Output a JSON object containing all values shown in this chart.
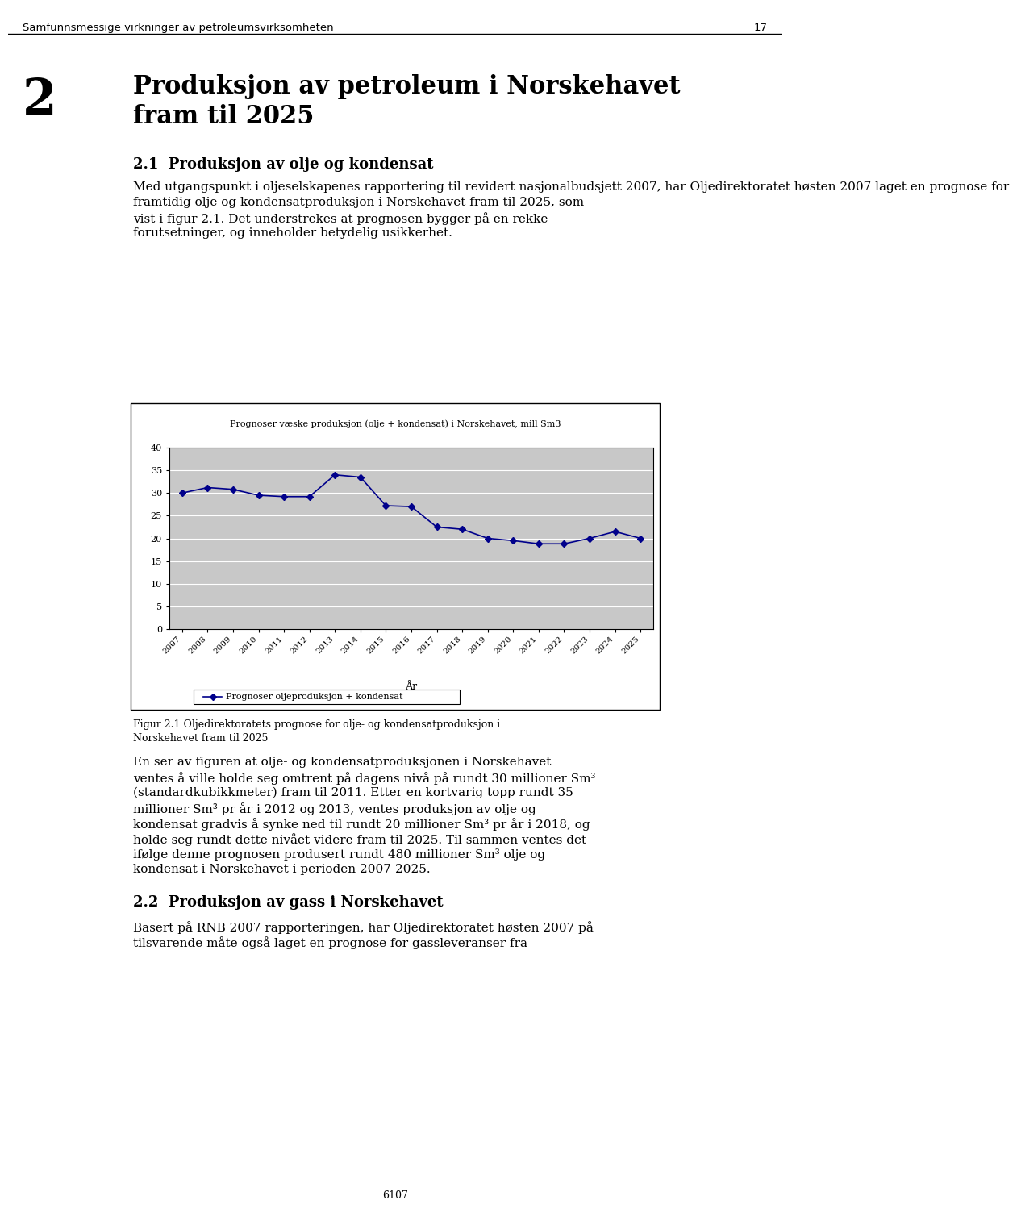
{
  "title": "Prognoser væske produksjon (olje + kondensat) i Norskehavet, mill Sm3",
  "xlabel": "År",
  "years": [
    2007,
    2008,
    2009,
    2010,
    2011,
    2012,
    2013,
    2014,
    2015,
    2016,
    2017,
    2018,
    2019,
    2020,
    2021,
    2022,
    2023,
    2024,
    2025
  ],
  "values": [
    30.0,
    31.2,
    30.8,
    29.5,
    29.2,
    29.2,
    34.0,
    33.5,
    27.2,
    27.0,
    22.5,
    22.0,
    20.0,
    19.5,
    18.8,
    18.8,
    20.0,
    21.5,
    20.0
  ],
  "line_color": "#00008B",
  "marker_color": "#00008B",
  "plot_bg_color": "#C8C8C8",
  "legend_label": "Prognoser oljeproduksjon + kondensat",
  "ylim": [
    0,
    40
  ],
  "yticks": [
    0,
    5,
    10,
    15,
    20,
    25,
    30,
    35,
    40
  ],
  "page_header": "Samfunnsmessige virkninger av petroleumsvirksomheten",
  "page_number": "17",
  "chapter_num": "2",
  "chapter_title": "Produksjon av petroleum i Norskehavet\nfram til 2025",
  "section_title": "2.1  Produksjon av olje og kondensat",
  "body_text1_lines": [
    "Med utgangspunkt i oljeselskapenes rapportering til revidert nasjonalbudsjett 2007, har Oljedirektoratet høsten 2007 laget en prognose for",
    "framtidig olje og kondensatproduksjon i Norskehavet fram til 2025, som",
    "vist i figur 2.1. Det understrekes at prognosen bygger på en rekke",
    "forutsetninger, og inneholder betydelig usikkerhet."
  ],
  "figure_caption_lines": [
    "Figur 2.1 Oljedirektoratets prognose for olje- og kondensatproduksjon i",
    "Norskehavet fram til 2025"
  ],
  "body_text2_lines": [
    "En ser av figuren at olje- og kondensatproduksjonen i Norskehavet",
    "ventes å ville holde seg omtrent på dagens nivå på rundt 30 millioner Sm³",
    "(standardkubikkmeter) fram til 2011. Etter en kortvarig topp rundt 35",
    "millioner Sm³ pr år i 2012 og 2013, ventes produksjon av olje og",
    "kondensat gradvis å synke ned til rundt 20 millioner Sm³ pr år i 2018, og",
    "holde seg rundt dette nivået videre fram til 2025. Til sammen ventes det",
    "ifølge denne prognosen produsert rundt 480 millioner Sm³ olje og",
    "kondensat i Norskehavet i perioden 2007-2025."
  ],
  "section2_title": "2.2  Produksjon av gass i Norskehavet",
  "body_text3_lines": [
    "Basert på RNB 2007 rapporteringen, har Oljedirektoratet høsten 2007 på",
    "tilsvarende måte også laget en prognose for gassleveranser fra"
  ],
  "footer": "6107"
}
